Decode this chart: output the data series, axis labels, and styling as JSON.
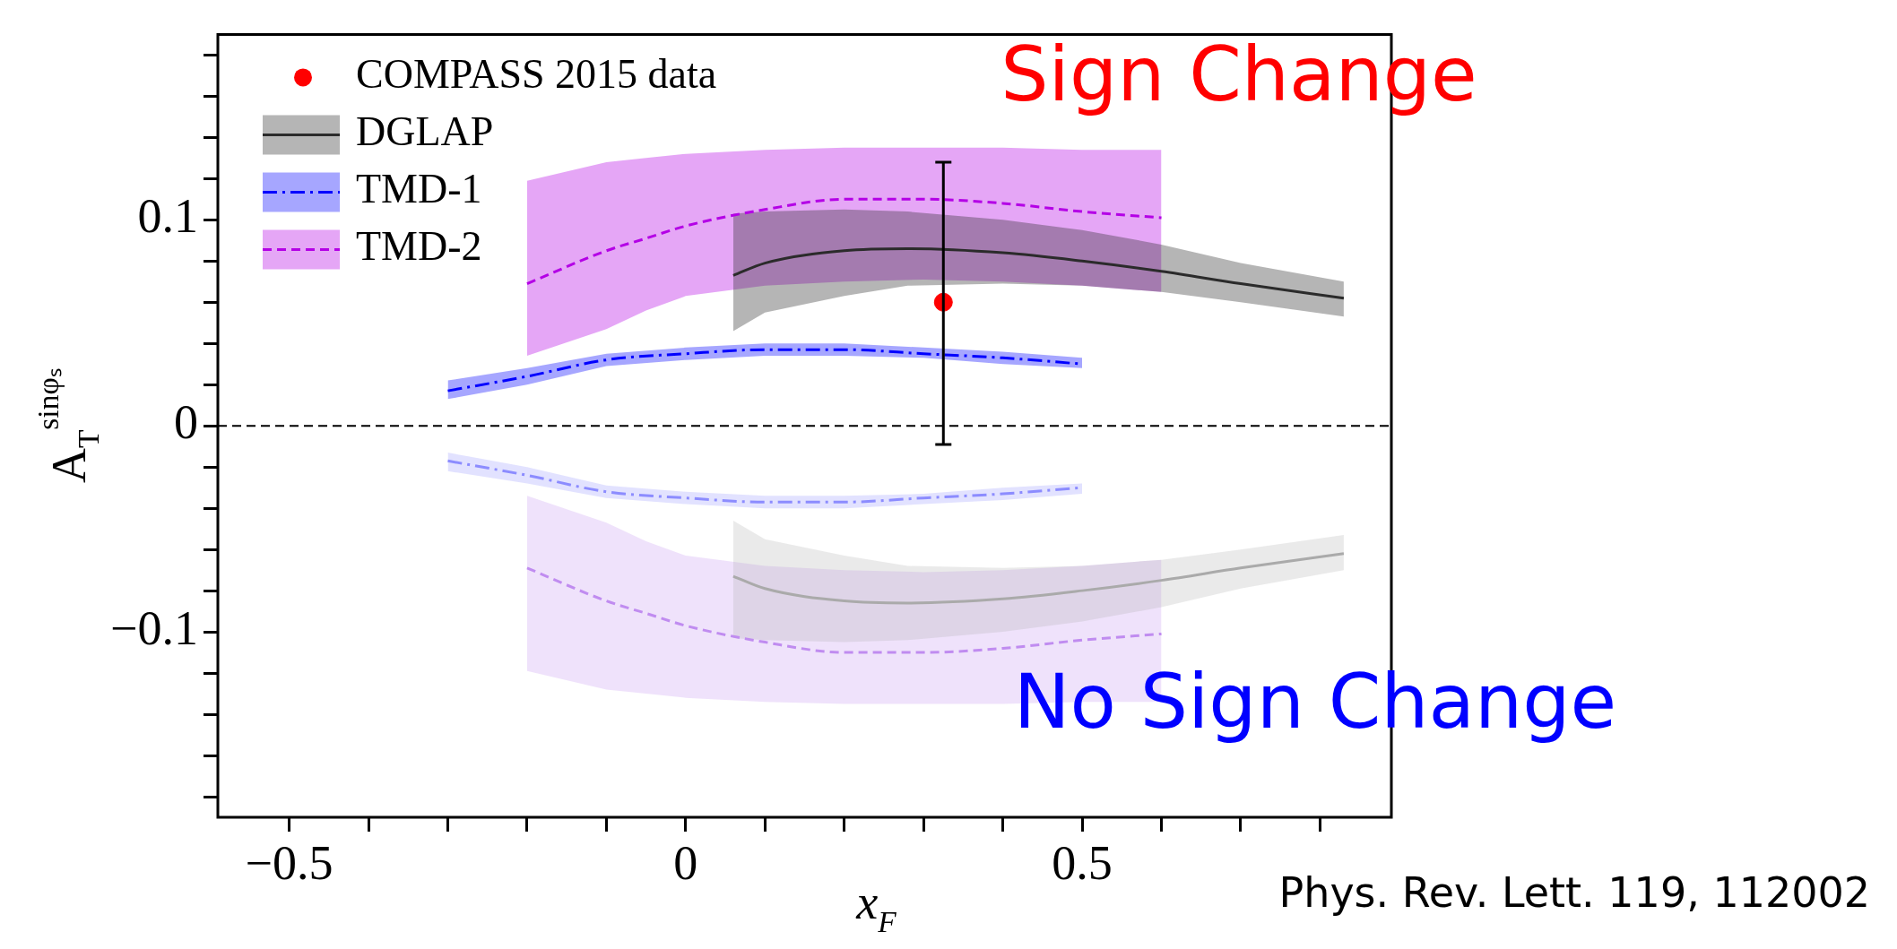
{
  "chart_data": {
    "type": "line",
    "xlabel": "x$_{F}$",
    "ylabel": "A$_{T}$$^{sinφₛ}$",
    "xlim": [
      -0.59,
      0.89
    ],
    "ylim": [
      -0.19,
      0.19
    ],
    "xticks": [
      {
        "value": -0.5,
        "label": "−0.5"
      },
      {
        "value": -0.4,
        "label": null
      },
      {
        "value": -0.3,
        "label": null
      },
      {
        "value": -0.2,
        "label": null
      },
      {
        "value": -0.1,
        "label": null
      },
      0,
      {
        "value": 0.1,
        "label": null
      },
      {
        "value": 0.2,
        "label": null
      },
      {
        "value": 0.3,
        "label": null
      },
      {
        "value": 0.4,
        "label": null
      },
      0.5,
      {
        "value": 0.6,
        "label": null
      },
      {
        "value": 0.7,
        "label": null
      },
      {
        "value": 0.8,
        "label": null
      }
    ],
    "yticks": [
      {
        "value": -0.18,
        "label": null
      },
      {
        "value": -0.16,
        "label": null
      },
      {
        "value": -0.14,
        "label": null
      },
      {
        "value": -0.12,
        "label": null
      },
      {
        "value": -0.1,
        "label": "−0.1"
      },
      {
        "value": -0.08,
        "label": null
      },
      {
        "value": -0.06,
        "label": null
      },
      {
        "value": -0.04,
        "label": null
      },
      {
        "value": -0.02,
        "label": null
      },
      0,
      {
        "value": 0.02,
        "label": null
      },
      {
        "value": 0.04,
        "label": null
      },
      {
        "value": 0.06,
        "label": null
      },
      {
        "value": 0.08,
        "label": null
      },
      0.1,
      {
        "value": 0.12,
        "label": null
      },
      {
        "value": 0.14,
        "label": null
      },
      {
        "value": 0.16,
        "label": null
      },
      {
        "value": 0.18,
        "label": null
      }
    ],
    "legend": "top left",
    "grid": false,
    "ref_lines": [
      {
        "axis": "y",
        "value": 0,
        "color": "#000000",
        "line_style": "dashed"
      }
    ],
    "annotations": [
      "Sign Change",
      "No Sign Change",
      "Phys. Rev. Lett. 119, 112002"
    ],
    "series": [
      {
        "name": "COMPASS 2015 data",
        "type": "scatter",
        "marker": "circle",
        "color": "#ff0000",
        "x": [
          0.325
        ],
        "values": [
          0.06
        ],
        "errors": [
          [
            -0.009,
            0.128
          ]
        ]
      },
      {
        "name": "DGLAP",
        "type": "line",
        "line_style": "solid",
        "color": "#2b2b2b",
        "x": [
          0.06,
          0.1,
          0.2,
          0.28,
          0.4,
          0.5,
          0.6,
          0.7,
          0.83
        ],
        "values": [
          0.073,
          0.079,
          0.085,
          0.086,
          0.084,
          0.08,
          0.075,
          0.069,
          0.062
        ],
        "upper": [
          0.103,
          0.104,
          0.105,
          0.104,
          0.1,
          0.095,
          0.088,
          0.079,
          0.07
        ],
        "lower": [
          0.046,
          0.055,
          0.063,
          0.068,
          0.069,
          0.068,
          0.065,
          0.06,
          0.053
        ]
      },
      {
        "name": "TMD-1",
        "type": "line",
        "line_style": "dashdot",
        "color": "#0000ff",
        "x": [
          -0.3,
          -0.2,
          -0.1,
          0,
          0.1,
          0.2,
          0.3,
          0.4,
          0.5
        ],
        "values": [
          0.017,
          0.024,
          0.032,
          0.035,
          0.037,
          0.037,
          0.035,
          0.033,
          0.03
        ],
        "upper": [
          0.022,
          0.028,
          0.035,
          0.038,
          0.04,
          0.04,
          0.038,
          0.036,
          0.033
        ],
        "lower": [
          0.013,
          0.02,
          0.029,
          0.032,
          0.034,
          0.034,
          0.033,
          0.03,
          0.028
        ]
      },
      {
        "name": "TMD-2",
        "type": "line",
        "line_style": "dashed",
        "color": "#b400e6",
        "x": [
          -0.2,
          -0.1,
          -0.05,
          0,
          0.1,
          0.2,
          0.3,
          0.4,
          0.5,
          0.6
        ],
        "values": [
          0.069,
          0.085,
          0.091,
          0.097,
          0.105,
          0.11,
          0.11,
          0.108,
          0.104,
          0.101
        ],
        "upper": [
          0.119,
          0.128,
          0.13,
          0.132,
          0.134,
          0.135,
          0.135,
          0.135,
          0.134,
          0.134
        ],
        "lower": [
          0.034,
          0.047,
          0.056,
          0.063,
          0.068,
          0.07,
          0.071,
          0.07,
          0.068,
          0.065
        ]
      },
      {
        "type": "line",
        "line_style": "solid",
        "color": "#aaaaaa",
        "x": [
          0.06,
          0.1,
          0.2,
          0.28,
          0.4,
          0.5,
          0.6,
          0.7,
          0.83
        ],
        "values": [
          -0.073,
          -0.079,
          -0.085,
          -0.086,
          -0.084,
          -0.08,
          -0.075,
          -0.069,
          -0.062
        ],
        "upper": [
          -0.046,
          -0.055,
          -0.063,
          -0.068,
          -0.069,
          -0.068,
          -0.065,
          -0.06,
          -0.053
        ],
        "lower": [
          -0.103,
          -0.104,
          -0.105,
          -0.104,
          -0.1,
          -0.095,
          -0.088,
          -0.079,
          -0.07
        ]
      },
      {
        "type": "line",
        "line_style": "dashdot",
        "color": "#8c8cff",
        "x": [
          -0.3,
          -0.2,
          -0.1,
          0,
          0.1,
          0.2,
          0.3,
          0.4,
          0.5
        ],
        "values": [
          -0.017,
          -0.024,
          -0.032,
          -0.035,
          -0.037,
          -0.037,
          -0.035,
          -0.033,
          -0.03
        ],
        "upper": [
          -0.013,
          -0.02,
          -0.029,
          -0.032,
          -0.034,
          -0.034,
          -0.033,
          -0.03,
          -0.028
        ],
        "lower": [
          -0.022,
          -0.028,
          -0.035,
          -0.038,
          -0.04,
          -0.04,
          -0.038,
          -0.036,
          -0.033
        ]
      },
      {
        "type": "line",
        "line_style": "dashed",
        "color": "#c08cf0",
        "x": [
          -0.2,
          -0.1,
          -0.05,
          0,
          0.1,
          0.2,
          0.3,
          0.4,
          0.5,
          0.6
        ],
        "values": [
          -0.069,
          -0.085,
          -0.091,
          -0.097,
          -0.105,
          -0.11,
          -0.11,
          -0.108,
          -0.104,
          -0.101
        ],
        "upper": [
          -0.034,
          -0.047,
          -0.056,
          -0.063,
          -0.068,
          -0.07,
          -0.071,
          -0.07,
          -0.068,
          -0.065
        ],
        "lower": [
          -0.119,
          -0.128,
          -0.13,
          -0.132,
          -0.134,
          -0.135,
          -0.135,
          -0.135,
          -0.134,
          -0.134
        ]
      }
    ]
  }
}
